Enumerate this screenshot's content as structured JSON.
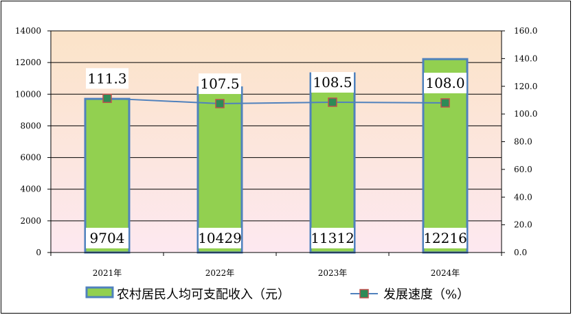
{
  "chart_data": {
    "type": "bar+line",
    "categories": [
      "2021年",
      "2022年",
      "2023年",
      "2024年"
    ],
    "y_left": {
      "range": [
        0,
        14000
      ],
      "ticks": [
        "0",
        "2000",
        "4000",
        "6000",
        "8000",
        "10000",
        "12000",
        "14000"
      ]
    },
    "y_right": {
      "range": [
        0,
        160
      ],
      "ticks": [
        "0.0",
        "20.0",
        "40.0",
        "60.0",
        "80.0",
        "100.0",
        "120.0",
        "140.0",
        "160.0"
      ]
    },
    "series": [
      {
        "name": "农村居民人均可支配收入（元）",
        "type": "bar",
        "axis": "left",
        "values": [
          9704,
          10429,
          11312,
          12216
        ],
        "labels": [
          "9704",
          "10429",
          "11312",
          "12216"
        ],
        "fill_color": "#92d050",
        "border_color": "#4f81bd"
      },
      {
        "name": "发展速度（%）",
        "type": "line",
        "axis": "right",
        "values": [
          111.3,
          107.5,
          108.5,
          108.0
        ],
        "labels": [
          "111.3",
          "107.5",
          "108.5",
          "108.0"
        ],
        "line_color": "#4f81bd",
        "marker_fill": "#2e8b57",
        "marker_border": "#c0504d"
      }
    ],
    "grid": true,
    "legend_position": "bottom",
    "background_gradient": [
      "#fbe5d6",
      "#fde9f0"
    ]
  }
}
